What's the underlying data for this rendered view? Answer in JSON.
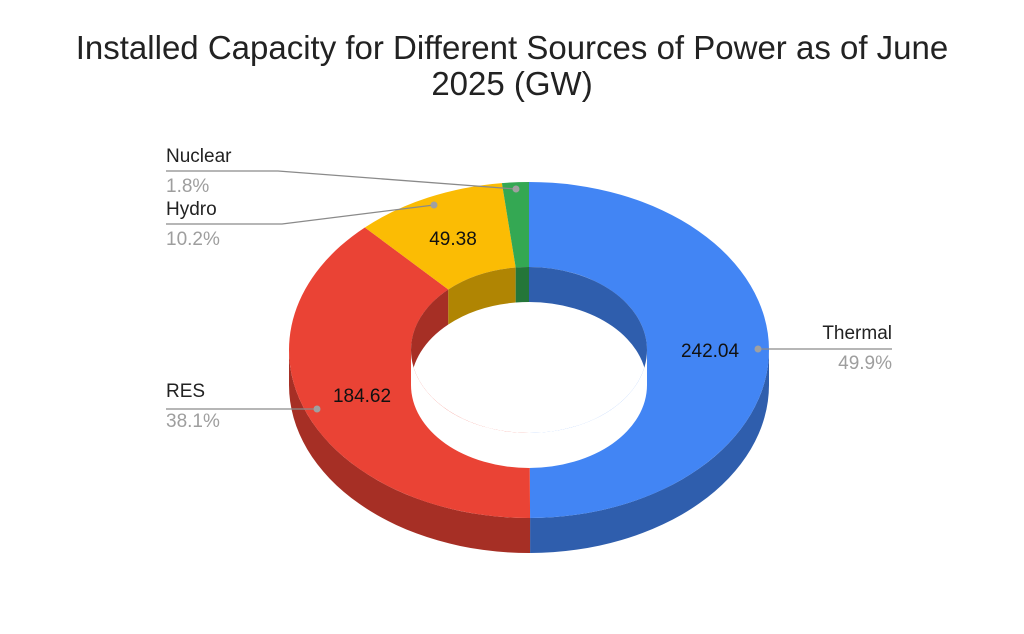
{
  "chart_data": {
    "type": "pie",
    "style": "3d-donut",
    "title": "Installed Capacity for Different Sources of Power as of June 2025 (GW)",
    "slices": [
      {
        "name": "Thermal",
        "value": 242.04,
        "percent": "49.9%",
        "color": "#4285f4",
        "side_color": "#2f5ead"
      },
      {
        "name": "RES",
        "value": 184.62,
        "percent": "38.1%",
        "color": "#ea4335",
        "side_color": "#a62f25"
      },
      {
        "name": "Hydro",
        "value": 49.38,
        "percent": "10.2%",
        "color": "#fbbc04",
        "side_color": "#b08503"
      },
      {
        "name": "Nuclear",
        "value": 8.73,
        "percent": "1.8%",
        "color": "#34a853",
        "side_color": "#247639"
      }
    ],
    "value_labels": [
      "242.04",
      "184.62",
      "49.38"
    ],
    "legend": "none"
  }
}
